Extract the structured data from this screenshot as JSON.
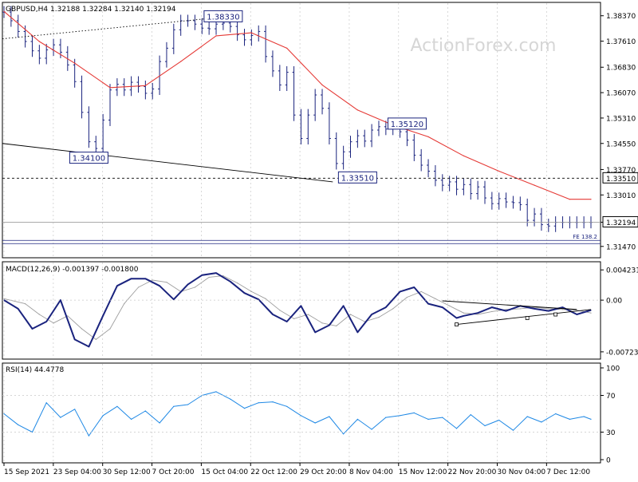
{
  "watermark": "ActionForex.com",
  "colors": {
    "candle": "#1a237e",
    "sma": "#e53935",
    "macd_line": "#1a237e",
    "macd_signal": "#9e9e9e",
    "rsi": "#1e88e5",
    "trend": "#000000",
    "grid": "#c8c8c8",
    "label_box": "#1a237e"
  },
  "chart_data": [
    {
      "type": "line",
      "title": "GBPUSD,H4  1.32188 1.32284 1.32140 1.32194",
      "symbol": "GBPUSD",
      "timeframe": "H4",
      "ohlc_last": {
        "open": 1.32188,
        "high": 1.32284,
        "low": 1.3214,
        "close": 1.32194
      },
      "y_ticks": [
        "1.38370",
        "1.37610",
        "1.36830",
        "1.36070",
        "1.35310",
        "1.34550",
        "1.33770",
        "1.33010",
        "1.32194",
        "1.31470"
      ],
      "ylim": [
        1.3125,
        1.3865
      ],
      "x_ticks": [
        "15 Sep 2021",
        "23 Sep 04:00",
        "30 Sep 12:00",
        "7 Oct 20:00",
        "15 Oct 04:00",
        "22 Oct 12:00",
        "29 Oct 20:00",
        "8 Nov 04:00",
        "15 Nov 12:00",
        "22 Nov 20:00",
        "30 Nov 04:00",
        "7 Dec 12:00"
      ],
      "price_marker": "1.32194",
      "support_level": {
        "value": 1.3351,
        "label": "1.33510"
      },
      "extra_line": {
        "value": 1.3165,
        "label": "FE 138.2"
      },
      "annotations": [
        {
          "label": "1.38330",
          "value": 1.3833,
          "bar": 62
        },
        {
          "label": "1.34100",
          "value": 1.341,
          "bar": 24
        },
        {
          "label": "1.33510",
          "value": 1.3351,
          "bar": 100
        },
        {
          "label": "1.35120",
          "value": 1.3512,
          "bar": 114
        }
      ],
      "series": [
        {
          "name": "",
          "kind": "close",
          "x": [
            0,
            2,
            4,
            6,
            8,
            10,
            12,
            14,
            16,
            18,
            20,
            22,
            24,
            26,
            28,
            30,
            32,
            34,
            36,
            38,
            40,
            42,
            44,
            46,
            48,
            50,
            52,
            54,
            56,
            58,
            60,
            62,
            64,
            66,
            68,
            70,
            72,
            74,
            76,
            78,
            80,
            82,
            84,
            86,
            88,
            90,
            92,
            94,
            96,
            98,
            100,
            102,
            104,
            106,
            108,
            110,
            112,
            114,
            116,
            118,
            120,
            122,
            124,
            126,
            128,
            130,
            132,
            134,
            136,
            138,
            140,
            142,
            144,
            146,
            148,
            150,
            152,
            154,
            156,
            158,
            160,
            162,
            164,
            166
          ],
          "values": [
            1.3848,
            1.3822,
            1.379,
            1.376,
            1.3732,
            1.371,
            1.3735,
            1.375,
            1.3728,
            1.369,
            1.364,
            1.3548,
            1.346,
            1.344,
            1.3525,
            1.3615,
            1.3632,
            1.3615,
            1.3638,
            1.3625,
            1.3605,
            1.3618,
            1.37,
            1.374,
            1.3795,
            1.3822,
            1.3822,
            1.3812,
            1.38,
            1.3798,
            1.3812,
            1.3815,
            1.3805,
            1.378,
            1.3765,
            1.3778,
            1.379,
            1.3715,
            1.3672,
            1.363,
            1.3668,
            1.354,
            1.347,
            1.354,
            1.36,
            1.356,
            1.347,
            1.3395,
            1.343,
            1.346,
            1.3478,
            1.3462,
            1.3495,
            1.3505,
            1.3498,
            1.3508,
            1.349,
            1.3465,
            1.342,
            1.339,
            1.3372,
            1.3345,
            1.333,
            1.334,
            1.3318,
            1.3332,
            1.3305,
            1.3325,
            1.3292,
            1.3275,
            1.329,
            1.328,
            1.3278,
            1.3272,
            1.3225,
            1.3244,
            1.3212,
            1.3208,
            1.3219,
            1.3219,
            1.3219,
            1.3219,
            1.3219,
            1.3219
          ]
        },
        {
          "name": "",
          "kind": "sma",
          "x": [
            0,
            10,
            20,
            30,
            40,
            50,
            60,
            70,
            80,
            90,
            100,
            110,
            120,
            130,
            140,
            150,
            160,
            166
          ],
          "values": [
            1.385,
            1.376,
            1.3695,
            1.3622,
            1.3628,
            1.37,
            1.3777,
            1.3786,
            1.374,
            1.363,
            1.3555,
            1.351,
            1.3475,
            1.3418,
            1.3372,
            1.333,
            1.3288,
            1.3288
          ]
        }
      ]
    },
    {
      "type": "line",
      "title": "MACD(12,26,9) -0.001397 -0.001800",
      "y_ticks": [
        "0.004231",
        "0.00",
        "-0.00723"
      ],
      "ylim": [
        -0.0078,
        0.0047
      ],
      "series": [
        {
          "name": "",
          "kind": "macd",
          "x": [
            0,
            4,
            8,
            12,
            16,
            20,
            24,
            28,
            32,
            36,
            40,
            44,
            48,
            52,
            56,
            60,
            64,
            68,
            72,
            76,
            80,
            84,
            88,
            92,
            96,
            100,
            104,
            108,
            112,
            116,
            120,
            124,
            128,
            130,
            134,
            138,
            142,
            146,
            150,
            154,
            158,
            162,
            166
          ],
          "values": [
            0.0,
            -0.0012,
            -0.004,
            -0.003,
            0.0,
            -0.0055,
            -0.0065,
            -0.0022,
            0.002,
            0.003,
            0.003,
            0.002,
            0.0001,
            0.0022,
            0.0035,
            0.0038,
            0.0026,
            0.001,
            0.0001,
            -0.002,
            -0.003,
            -0.0008,
            -0.0045,
            -0.0035,
            -0.0008,
            -0.0045,
            -0.002,
            -0.001,
            0.0012,
            0.0018,
            -0.0005,
            -0.001,
            -0.0025,
            -0.0022,
            -0.0018,
            -0.001,
            -0.0015,
            -0.0008,
            -0.0012,
            -0.0015,
            -0.001,
            -0.002,
            -0.0014
          ]
        },
        {
          "name": "",
          "kind": "signal",
          "x": [
            0,
            6,
            10,
            14,
            18,
            22,
            26,
            30,
            34,
            38,
            42,
            46,
            50,
            54,
            58,
            62,
            66,
            70,
            74,
            78,
            82,
            86,
            90,
            94,
            98,
            102,
            106,
            110,
            114,
            118,
            122,
            126,
            130,
            134,
            138,
            142,
            146,
            150,
            154,
            158,
            162,
            166
          ],
          "values": [
            0.0002,
            -0.0005,
            -0.002,
            -0.0032,
            -0.0022,
            -0.004,
            -0.0055,
            -0.004,
            -0.0005,
            0.0018,
            0.0028,
            0.0025,
            0.0012,
            0.0018,
            0.0032,
            0.0034,
            0.0024,
            0.0012,
            0.0002,
            -0.0014,
            -0.0026,
            -0.002,
            -0.0032,
            -0.0036,
            -0.002,
            -0.003,
            -0.0024,
            -0.0012,
            0.0004,
            0.0012,
            0.0002,
            -0.0008,
            -0.0018,
            -0.002,
            -0.0016,
            -0.0013,
            -0.0012,
            -0.001,
            -0.0012,
            -0.0013,
            -0.0014,
            -0.0018
          ]
        }
      ]
    },
    {
      "type": "line",
      "title": "RSI(14) 44.4778",
      "y_ticks": [
        "100",
        "70",
        "30",
        "0"
      ],
      "ylim": [
        0,
        100
      ],
      "series": [
        {
          "name": "",
          "kind": "rsi",
          "x": [
            0,
            4,
            8,
            12,
            16,
            20,
            24,
            28,
            32,
            36,
            40,
            44,
            48,
            52,
            56,
            60,
            64,
            68,
            72,
            76,
            80,
            84,
            88,
            92,
            96,
            100,
            104,
            108,
            112,
            116,
            120,
            124,
            128,
            132,
            136,
            140,
            144,
            148,
            152,
            156,
            160,
            164,
            166
          ],
          "values": [
            50,
            38,
            30,
            62,
            46,
            55,
            26,
            48,
            58,
            44,
            53,
            40,
            58,
            60,
            70,
            74,
            66,
            56,
            62,
            63,
            58,
            48,
            40,
            47,
            28,
            44,
            33,
            46,
            48,
            51,
            44,
            46,
            34,
            49,
            37,
            43,
            32,
            47,
            41,
            50,
            44,
            47,
            44
          ]
        }
      ]
    }
  ]
}
